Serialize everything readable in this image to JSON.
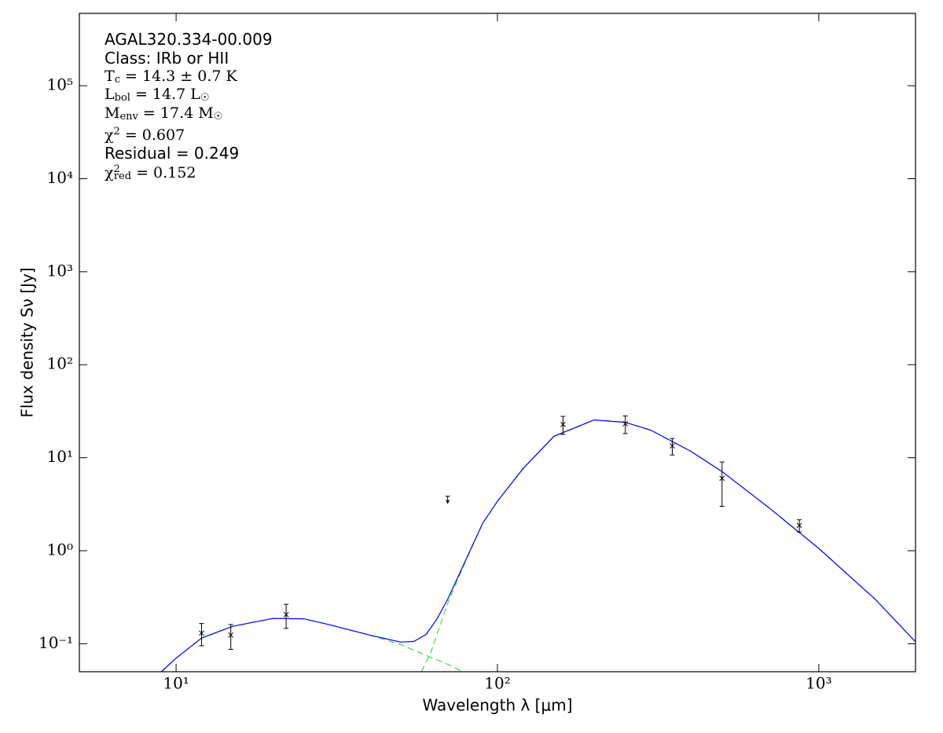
{
  "chart_data": {
    "type": "sed",
    "xlabel": "Wavelength λ [μm]",
    "ylabel": "Flux density Sν [Jy]",
    "xscale": "log",
    "yscale": "log",
    "xlim": [
      5,
      2000
    ],
    "ylim": [
      0.05,
      600000
    ],
    "xticks": [
      {
        "value": 10,
        "label": "10¹"
      },
      {
        "value": 100,
        "label": "10²"
      },
      {
        "value": 1000,
        "label": "10³"
      }
    ],
    "yticks": [
      {
        "value": 0.1,
        "label": "10⁻¹"
      },
      {
        "value": 1,
        "label": "10⁰"
      },
      {
        "value": 10,
        "label": "10¹"
      },
      {
        "value": 100,
        "label": "10²"
      },
      {
        "value": 1000,
        "label": "10³"
      },
      {
        "value": 10000,
        "label": "10⁴"
      },
      {
        "value": 100000,
        "label": "10⁵"
      }
    ],
    "annotations": [
      [
        {
          "t": "AGAL320.334-00.009"
        }
      ],
      [
        {
          "t": "Class: IRb or HII"
        }
      ],
      [
        {
          "t": "T"
        },
        {
          "t": "c",
          "pos": "sub"
        },
        {
          "t": " = 14.3 ± 0.7 K"
        }
      ],
      [
        {
          "t": "L"
        },
        {
          "t": "bol",
          "pos": "sub"
        },
        {
          "t": " = 14.7 L"
        },
        {
          "t": "☉",
          "pos": "sub"
        }
      ],
      [
        {
          "t": "M"
        },
        {
          "t": "env",
          "pos": "sub"
        },
        {
          "t": " = 17.4 M"
        },
        {
          "t": "☉",
          "pos": "sub"
        }
      ],
      [
        {
          "t": "χ"
        },
        {
          "t": "2",
          "pos": "sup"
        },
        {
          "t": " = 0.607"
        }
      ],
      [
        {
          "t": "Residual = 0.249"
        }
      ],
      [
        {
          "t": "χ"
        },
        {
          "t": "2",
          "pos": "sup"
        },
        {
          "t": "red",
          "pos": "sub"
        },
        {
          "t": " = 0.152"
        }
      ]
    ],
    "models": [
      {
        "color": "#44dd44",
        "style": "dashed",
        "x": [
          9,
          10,
          12,
          15,
          20,
          25,
          30,
          40,
          50,
          60,
          70,
          80
        ],
        "values": [
          0.05,
          0.07,
          0.115,
          0.154,
          0.187,
          0.185,
          0.16,
          0.124,
          0.098,
          0.075,
          0.06,
          0.048
        ]
      },
      {
        "color": "#44dd44",
        "style": "dashed",
        "x": [
          58,
          62,
          66,
          70,
          80,
          90,
          100,
          120,
          150,
          200,
          250,
          300,
          400,
          500,
          700,
          1000,
          1500,
          2000
        ],
        "values": [
          0.05,
          0.08,
          0.15,
          0.27,
          0.8,
          1.98,
          3.4,
          7.6,
          17,
          25.5,
          24,
          19.8,
          11.7,
          7.1,
          2.9,
          1.06,
          0.3,
          0.105
        ]
      },
      {
        "color": "#0000ff",
        "style": "solid",
        "x": [
          9,
          10,
          12,
          15,
          20,
          25,
          30,
          40,
          50,
          55,
          60,
          65,
          70,
          80,
          90,
          100,
          120,
          150,
          200,
          250,
          300,
          400,
          500,
          700,
          1000,
          1500,
          2000
        ],
        "values": [
          0.05,
          0.07,
          0.115,
          0.154,
          0.187,
          0.185,
          0.16,
          0.124,
          0.104,
          0.106,
          0.126,
          0.187,
          0.3,
          0.82,
          1.98,
          3.4,
          7.6,
          17,
          25.5,
          24,
          19.8,
          11.7,
          7.1,
          2.9,
          1.06,
          0.3,
          0.105
        ]
      }
    ],
    "points": {
      "color": "#000000",
      "x": [
        12,
        14.8,
        22,
        160,
        250,
        350,
        500,
        870
      ],
      "values": [
        0.13,
        0.124,
        0.206,
        22.8,
        23.2,
        13.4,
        6.0,
        1.87
      ],
      "errors": [
        0.035,
        0.037,
        0.06,
        5,
        5,
        2.7,
        3,
        0.28
      ]
    },
    "upper_limits": {
      "color": "#000000",
      "x": [
        70
      ],
      "values": [
        3.5
      ],
      "errors": [
        0.35
      ]
    }
  }
}
